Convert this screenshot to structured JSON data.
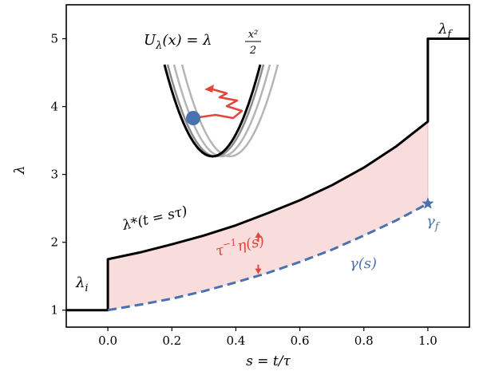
{
  "chart_data": {
    "type": "line",
    "xlabel": "s = t/τ",
    "ylabel": "λ",
    "xlim": [
      -0.13,
      1.13
    ],
    "ylim": [
      0.75,
      5.5
    ],
    "xticks": [
      0.0,
      0.2,
      0.4,
      0.6,
      0.8,
      1.0
    ],
    "xtick_labels": [
      "0.0",
      "0.2",
      "0.4",
      "0.6",
      "0.8",
      "1.0"
    ],
    "yticks": [
      1,
      2,
      3,
      4,
      5
    ],
    "ytick_labels": [
      "1",
      "2",
      "3",
      "4",
      "5"
    ],
    "grid": false,
    "series": [
      {
        "name": "λ*(t = sτ)",
        "color": "#000000",
        "style": "solid",
        "x": [
          -0.13,
          0.0,
          0.0,
          0.1,
          0.2,
          0.3,
          0.4,
          0.5,
          0.6,
          0.7,
          0.8,
          0.9,
          1.0,
          1.0,
          1.13
        ],
        "y": [
          1.0,
          1.0,
          1.75,
          1.85,
          1.97,
          2.1,
          2.25,
          2.43,
          2.62,
          2.84,
          3.1,
          3.41,
          3.78,
          5.0,
          5.0
        ]
      },
      {
        "name": "γ(s)",
        "color": "#4a72b0",
        "style": "dashed",
        "x": [
          0.0,
          0.1,
          0.2,
          0.3,
          0.4,
          0.5,
          0.6,
          0.7,
          0.8,
          0.9,
          1.0
        ],
        "y": [
          1.0,
          1.08,
          1.17,
          1.28,
          1.41,
          1.55,
          1.71,
          1.89,
          2.1,
          2.32,
          2.57
        ]
      }
    ],
    "fill_between": {
      "upper": "λ*(t = sτ)",
      "lower": "γ(s)",
      "x_range": [
        0.0,
        1.0
      ],
      "color": "#f9dcdc"
    },
    "markers": [
      {
        "shape": "star",
        "x": 1.0,
        "y": 2.57,
        "color": "#4a72b0"
      }
    ],
    "annotations": {
      "lambda_i": "λ",
      "lambda_i_sub": "i",
      "lambda_f": "λ",
      "lambda_f_sub": "f",
      "lambda_star": "λ*(t = sτ)",
      "gamma_s": "γ(s)",
      "gamma_f": "γ",
      "gamma_f_sub": "f",
      "eta_label_base": "τ",
      "eta_label_sup": "−1",
      "eta_label_rest": "η(s)",
      "potential_lhs": "U",
      "potential_lhs_sub": "λ",
      "potential_mid": "(x) = λ",
      "potential_frac_num": "x²",
      "potential_frac_den": "2"
    },
    "colors": {
      "eta": "#e0473a",
      "gamma": "#4a72b0",
      "fill": "#f9dcdc",
      "particle": "#4a72b0",
      "well_light": "#b5b5b5",
      "well_mid": "#8c8c8c"
    }
  }
}
